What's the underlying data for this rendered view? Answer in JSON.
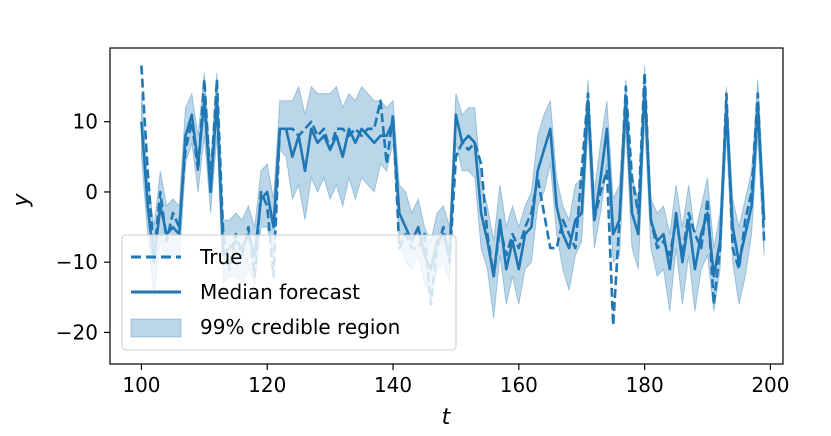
{
  "chart_data": {
    "type": "line",
    "title": "",
    "xlabel": "t",
    "ylabel": "y",
    "xlim": [
      95,
      202
    ],
    "ylim": [
      -24.5,
      20.5
    ],
    "xticks": [
      100,
      120,
      140,
      160,
      180,
      200
    ],
    "yticks": [
      -20,
      -10,
      0,
      10
    ],
    "xtick_labels": [
      "100",
      "120",
      "140",
      "160",
      "180",
      "200"
    ],
    "ytick_labels": [
      "−20",
      "−10",
      "0",
      "10"
    ],
    "grid": false,
    "legend_position": "lower-left",
    "color": "#1f77b4",
    "legend": [
      {
        "label": "True",
        "kind": "dashed-line"
      },
      {
        "label": "Median forecast",
        "kind": "solid-line"
      },
      {
        "label": "99% credible region",
        "kind": "patch"
      }
    ],
    "x": [
      100,
      101,
      102,
      103,
      104,
      105,
      106,
      107,
      108,
      109,
      110,
      111,
      112,
      113,
      114,
      115,
      116,
      117,
      118,
      119,
      120,
      121,
      122,
      123,
      124,
      125,
      126,
      127,
      128,
      129,
      130,
      131,
      132,
      133,
      134,
      135,
      136,
      137,
      138,
      139,
      140,
      141,
      142,
      143,
      144,
      145,
      146,
      147,
      148,
      149,
      150,
      151,
      152,
      153,
      154,
      155,
      156,
      157,
      158,
      159,
      160,
      161,
      162,
      163,
      164,
      165,
      166,
      167,
      168,
      169,
      170,
      171,
      172,
      173,
      174,
      175,
      176,
      177,
      178,
      179,
      180,
      181,
      182,
      183,
      184,
      185,
      186,
      187,
      188,
      189,
      190,
      191,
      192,
      193,
      194,
      195,
      196,
      197,
      198,
      199
    ],
    "series": [
      {
        "name": "True",
        "style": "dashed",
        "values": [
          18,
          3,
          -9,
          0,
          -7,
          -3,
          -5,
          6,
          10,
          3,
          16,
          1,
          16,
          -6,
          -11,
          -6,
          -9,
          -5,
          -12,
          0,
          -2,
          -12,
          9,
          9,
          9,
          8,
          9,
          10,
          8,
          9,
          6,
          9,
          9,
          8,
          9,
          8,
          9,
          9,
          13,
          4,
          11,
          -8,
          -6,
          -8,
          -8,
          -6,
          -16,
          -8,
          -5,
          -10,
          5,
          7,
          6,
          7,
          4,
          -6,
          -12,
          -5,
          -9,
          -6,
          -8,
          -5,
          -3,
          2,
          -3,
          -8,
          -8,
          -4,
          -6,
          -8,
          3,
          14,
          -4,
          0,
          3,
          -19,
          -4,
          15,
          2,
          -3,
          17,
          -4,
          -8,
          -7,
          -9,
          -4,
          -9,
          -3,
          -6,
          -8,
          -1,
          -16,
          -8,
          14,
          -8,
          -11,
          -4,
          0,
          14,
          -7
        ]
      },
      {
        "name": "Median forecast",
        "style": "solid",
        "values": [
          10,
          -2,
          -10,
          -2,
          -6,
          -5,
          -6,
          8,
          11,
          4,
          13,
          0,
          13,
          -9,
          -8,
          -7,
          -8,
          -6,
          -9,
          -1,
          0,
          -5,
          9,
          9,
          5,
          8,
          3,
          9,
          7,
          8,
          6,
          8,
          5,
          9,
          7,
          9,
          8,
          7,
          8,
          8,
          10,
          -3,
          -5,
          -7,
          -5,
          -9,
          -11,
          -7,
          -6,
          -9,
          11,
          7,
          8,
          7,
          -3,
          -7,
          -12,
          -4,
          -11,
          -7,
          -11,
          -6,
          -5,
          3,
          6,
          9,
          -2,
          -6,
          -8,
          -4,
          -3,
          13,
          -4,
          2,
          9,
          -6,
          -4,
          13,
          -3,
          -6,
          15,
          -4,
          -7,
          -6,
          -11,
          -3,
          -10,
          -4,
          -11,
          -6,
          -3,
          -12,
          -7,
          12,
          -5,
          -10,
          -6,
          -2,
          12,
          -4
        ]
      },
      {
        "name": "99% credible region",
        "style": "band",
        "lower": [
          5,
          -6,
          -15,
          -7,
          -10,
          -9,
          -10,
          4,
          7,
          0,
          8,
          -3,
          8,
          -13,
          -12,
          -12,
          -13,
          -11,
          -13,
          -5,
          -5,
          -9,
          6,
          5,
          -1,
          1,
          -4,
          2,
          0,
          2,
          -1,
          1,
          -2,
          2,
          -1,
          2,
          1,
          0,
          4,
          3,
          7,
          -7,
          -10,
          -11,
          -9,
          -13,
          -15,
          -11,
          -10,
          -13,
          7,
          3,
          3,
          2,
          -8,
          -11,
          -18,
          -9,
          -16,
          -12,
          -16,
          -11,
          -10,
          -2,
          0,
          4,
          -6,
          -11,
          -14,
          -9,
          -7,
          9,
          -8,
          -3,
          4,
          -10,
          -9,
          9,
          -8,
          -11,
          10,
          -8,
          -12,
          -11,
          -17,
          -8,
          -16,
          -9,
          -17,
          -11,
          -9,
          -17,
          -11,
          8,
          -10,
          -16,
          -12,
          -6,
          8,
          -9
        ],
        "upper": [
          14,
          2,
          -5,
          3,
          -2,
          -1,
          -2,
          12,
          14,
          8,
          17,
          4,
          17,
          -4,
          -4,
          -3,
          -4,
          -2,
          -5,
          3,
          4,
          -1,
          13,
          13,
          13,
          15,
          11,
          15,
          14,
          14,
          14,
          15,
          12,
          14,
          13,
          15,
          14,
          13,
          13,
          12,
          13,
          1,
          0,
          -3,
          -1,
          -5,
          -7,
          -3,
          -2,
          -5,
          14,
          11,
          12,
          12,
          1,
          -2,
          -7,
          1,
          -5,
          -2,
          -5,
          -2,
          0,
          8,
          11,
          13,
          2,
          -2,
          -4,
          1,
          2,
          16,
          0,
          7,
          13,
          -1,
          1,
          16,
          2,
          -1,
          18,
          -1,
          -3,
          -2,
          -6,
          1,
          -5,
          1,
          -6,
          -2,
          2,
          -8,
          -3,
          15,
          -1,
          -5,
          -1,
          3,
          16,
          -1
        ]
      }
    ]
  }
}
